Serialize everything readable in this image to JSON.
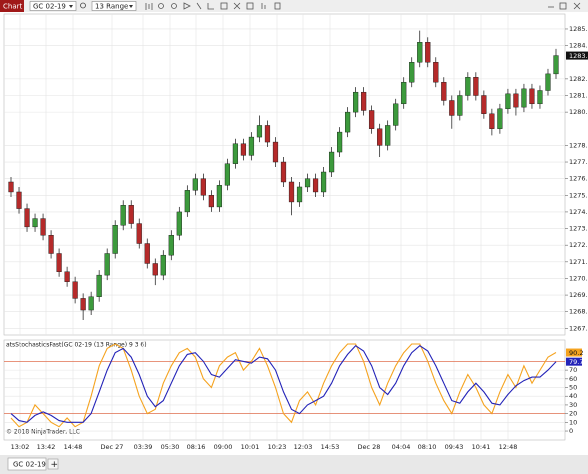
{
  "toolbar": {
    "tab": "Chart",
    "instrument": "GC 02-19",
    "interval": "13 Range"
  },
  "chart_data": [
    {
      "type": "candlestick",
      "up_color": "#3c9a3c",
      "down_color": "#b52a2a",
      "grid": true,
      "ylim": [
        1266.6,
        1285.9
      ],
      "yticks": [
        {
          "value": 1285,
          "label": "1285.0"
        },
        {
          "value": 1284,
          "label": "1284.0"
        },
        {
          "value": 1282,
          "label": "1282.0"
        },
        {
          "value": 1281,
          "label": "1281.0"
        },
        {
          "value": 1280,
          "label": "1280.0"
        },
        {
          "value": 1278,
          "label": "1278.0"
        },
        {
          "value": 1277,
          "label": "1277.0"
        },
        {
          "value": 1276,
          "label": "1276.0"
        },
        {
          "value": 1275,
          "label": "1275.0"
        },
        {
          "value": 1274,
          "label": "1274.0"
        },
        {
          "value": 1273,
          "label": "1273.0"
        },
        {
          "value": 1272,
          "label": "1272.0"
        },
        {
          "value": 1271,
          "label": "1271.0"
        },
        {
          "value": 1270,
          "label": "1270.0"
        },
        {
          "value": 1269,
          "label": "1269.0"
        },
        {
          "value": 1268,
          "label": "1268.0"
        },
        {
          "value": 1267,
          "label": "1267.0"
        }
      ],
      "open": [
        1275.8,
        1275.2,
        1274.2,
        1273.1,
        1273.6,
        1272.6,
        1271.5,
        1270.4,
        1269.8,
        1268.8,
        1268.1,
        1268.9,
        1270.2,
        1271.5,
        1273.2,
        1274.4,
        1273.3,
        1272.1,
        1270.9,
        1270.2,
        1271.4,
        1272.6,
        1274.0,
        1275.3,
        1276.0,
        1275.0,
        1274.3,
        1275.6,
        1276.9,
        1278.1,
        1277.4,
        1278.5,
        1279.2,
        1278.2,
        1277.0,
        1275.8,
        1274.6,
        1275.5,
        1276.0,
        1275.2,
        1276.4,
        1277.6,
        1278.8,
        1280.0,
        1281.2,
        1280.1,
        1279.0,
        1278.0,
        1279.2,
        1280.5,
        1281.8,
        1283.0,
        1284.2,
        1283.0,
        1281.8,
        1280.7,
        1279.8,
        1281.0,
        1282.1,
        1281.0,
        1279.9,
        1279.0,
        1280.2,
        1281.1,
        1280.3,
        1281.4,
        1280.5,
        1281.3,
        1282.3
      ],
      "high": [
        1276.1,
        1275.5,
        1274.5,
        1273.9,
        1273.9,
        1272.9,
        1271.8,
        1270.7,
        1270.1,
        1269.1,
        1269.2,
        1270.5,
        1271.8,
        1273.5,
        1274.7,
        1274.7,
        1273.6,
        1272.4,
        1271.2,
        1271.7,
        1272.9,
        1274.3,
        1275.6,
        1276.3,
        1276.3,
        1275.3,
        1275.9,
        1277.2,
        1278.4,
        1278.4,
        1278.8,
        1279.8,
        1279.5,
        1278.5,
        1277.3,
        1276.1,
        1275.8,
        1276.3,
        1276.3,
        1276.7,
        1277.9,
        1279.1,
        1280.3,
        1281.5,
        1281.5,
        1280.4,
        1279.3,
        1279.5,
        1280.8,
        1282.1,
        1283.3,
        1284.9,
        1284.5,
        1283.3,
        1282.1,
        1281.0,
        1281.3,
        1282.4,
        1282.4,
        1281.3,
        1280.2,
        1280.5,
        1281.4,
        1281.4,
        1281.7,
        1281.7,
        1281.6,
        1282.6,
        1283.8
      ],
      "low": [
        1274.9,
        1273.9,
        1272.8,
        1272.8,
        1272.3,
        1271.2,
        1270.1,
        1269.5,
        1268.5,
        1267.5,
        1267.8,
        1268.6,
        1269.9,
        1271.2,
        1272.9,
        1273.0,
        1271.8,
        1270.6,
        1269.6,
        1269.9,
        1271.1,
        1272.3,
        1273.7,
        1275.0,
        1274.7,
        1274.0,
        1274.0,
        1275.3,
        1276.6,
        1277.1,
        1277.1,
        1278.2,
        1277.9,
        1276.7,
        1275.5,
        1273.8,
        1274.3,
        1275.2,
        1274.9,
        1274.9,
        1276.1,
        1277.3,
        1278.5,
        1279.7,
        1279.8,
        1278.7,
        1277.3,
        1277.7,
        1278.9,
        1280.2,
        1281.5,
        1282.7,
        1282.7,
        1281.5,
        1280.4,
        1279.0,
        1279.5,
        1280.7,
        1280.7,
        1279.6,
        1278.6,
        1278.7,
        1279.9,
        1279.8,
        1280.0,
        1280.2,
        1280.2,
        1281.0,
        1282.0
      ],
      "close": [
        1275.2,
        1274.2,
        1273.1,
        1273.6,
        1272.6,
        1271.5,
        1270.4,
        1269.8,
        1268.8,
        1268.1,
        1268.9,
        1270.2,
        1271.5,
        1273.2,
        1274.4,
        1273.3,
        1272.1,
        1270.9,
        1270.2,
        1271.4,
        1272.6,
        1274.0,
        1275.3,
        1276.0,
        1275.0,
        1274.3,
        1275.6,
        1276.9,
        1278.1,
        1277.4,
        1278.5,
        1279.2,
        1278.2,
        1277.0,
        1275.8,
        1274.6,
        1275.5,
        1276.0,
        1275.2,
        1276.4,
        1277.6,
        1278.8,
        1280.0,
        1281.2,
        1280.1,
        1279.0,
        1278.0,
        1279.2,
        1280.5,
        1281.8,
        1283.0,
        1284.2,
        1283.0,
        1281.8,
        1280.7,
        1279.8,
        1281.0,
        1282.1,
        1281.0,
        1279.9,
        1279.0,
        1280.2,
        1281.1,
        1280.3,
        1281.4,
        1280.5,
        1281.3,
        1282.3,
        1283.4
      ]
    },
    {
      "type": "line",
      "title": "atsStochasticsFast(GC 02-19 (13 Range) 9 3 6)",
      "annotation": "© 2018 NinjaTrader, LLC",
      "ylim": [
        -10.3,
        104.6
      ],
      "yticks": [
        0,
        10,
        20,
        30,
        40,
        50,
        60,
        70
      ],
      "grid": true,
      "levels": [
        80,
        20
      ],
      "level_color": "#e07050",
      "series": [
        {
          "color": "#f5a31f",
          "values": [
            15,
            5,
            10,
            30,
            20,
            10,
            5,
            15,
            5,
            10,
            40,
            75,
            95,
            100,
            95,
            70,
            40,
            20,
            25,
            55,
            75,
            90,
            95,
            85,
            60,
            50,
            75,
            85,
            90,
            70,
            80,
            95,
            75,
            50,
            20,
            10,
            35,
            45,
            30,
            55,
            75,
            90,
            100,
            100,
            80,
            50,
            30,
            55,
            75,
            90,
            100,
            100,
            80,
            55,
            35,
            20,
            45,
            65,
            50,
            30,
            20,
            45,
            65,
            50,
            75,
            55,
            70,
            85,
            90.2
          ]
        },
        {
          "color": "#2323b8",
          "values": [
            20,
            12,
            10,
            18,
            22,
            18,
            12,
            10,
            10,
            10,
            20,
            45,
            70,
            90,
            95,
            85,
            65,
            40,
            28,
            35,
            55,
            75,
            88,
            90,
            80,
            65,
            62,
            72,
            82,
            80,
            78,
            85,
            83,
            70,
            45,
            25,
            20,
            30,
            35,
            40,
            55,
            75,
            88,
            98,
            92,
            75,
            50,
            42,
            55,
            75,
            90,
            98,
            92,
            75,
            55,
            35,
            32,
            45,
            55,
            45,
            32,
            30,
            42,
            52,
            58,
            62,
            62,
            70,
            79.7
          ]
        }
      ],
      "x_labels": [
        "13:02",
        "13:42",
        "14:48",
        "Dec 27",
        "03:39",
        "05:30",
        "08:16",
        "09:00",
        "10:01",
        "10:23",
        "12:03",
        "14:53",
        "Dec 28",
        "04:04",
        "08:10",
        "09:43",
        "10:41",
        "12:48"
      ]
    }
  ],
  "footer": {
    "tab": "GC 02-19",
    "add": "+"
  }
}
